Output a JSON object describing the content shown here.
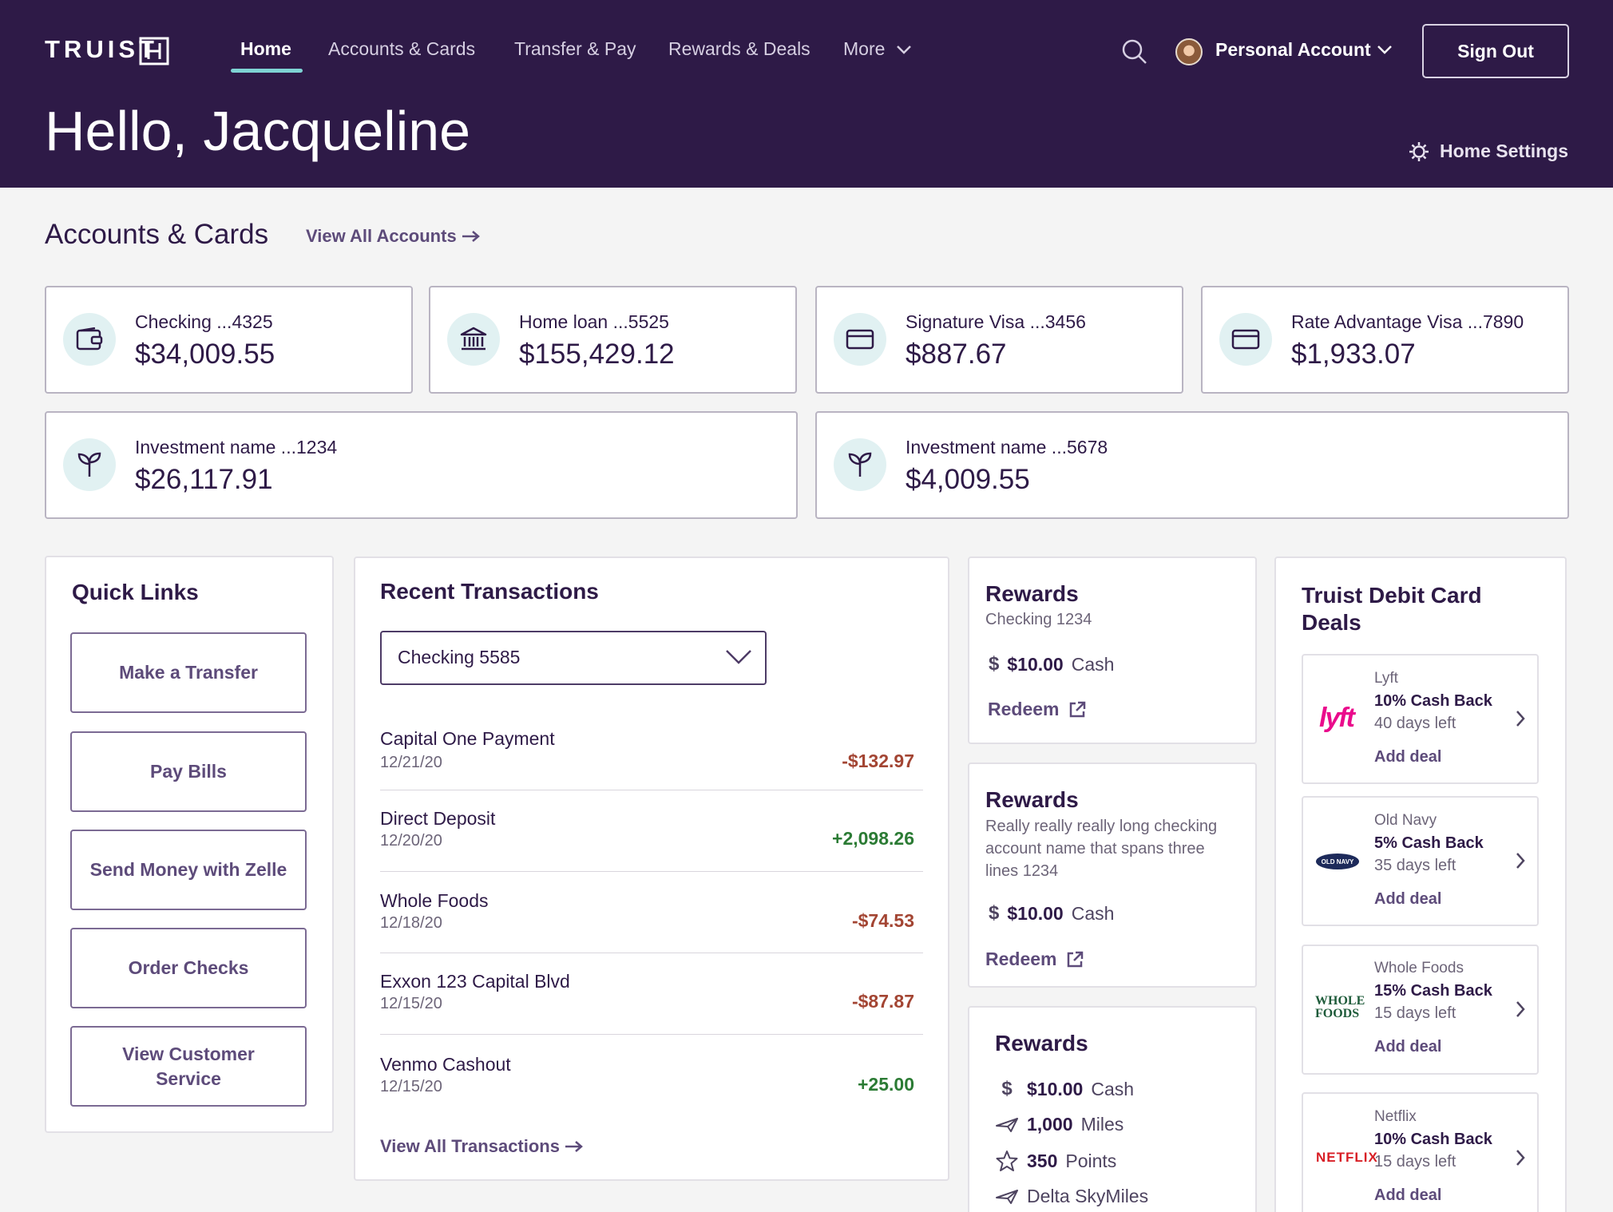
{
  "brand": {
    "name": "TRUIST",
    "primary_color": "#2e1a47",
    "accent_color": "#7ed3d4"
  },
  "nav": {
    "items": [
      {
        "label": "Home",
        "active": true
      },
      {
        "label": "Accounts & Cards"
      },
      {
        "label": "Transfer & Pay"
      },
      {
        "label": "Rewards & Deals"
      },
      {
        "label": "More"
      }
    ],
    "account_label": "Personal Account",
    "sign_out": "Sign Out"
  },
  "header": {
    "greeting": "Hello, Jacqueline",
    "home_settings": "Home Settings"
  },
  "accounts": {
    "title": "Accounts & Cards",
    "view_all": "View All Accounts",
    "cards": [
      {
        "name": "Checking ...4325",
        "balance": "$34,009.55",
        "icon": "wallet-icon"
      },
      {
        "name": "Home loan ...5525",
        "balance": "$155,429.12",
        "icon": "bank-icon"
      },
      {
        "name": "Signature Visa ...3456",
        "balance": "$887.67",
        "icon": "credit-card-icon"
      },
      {
        "name": "Rate Advantage Visa ...7890",
        "balance": "$1,933.07",
        "icon": "credit-card-icon"
      },
      {
        "name": "Investment name ...1234",
        "balance": "$26,117.91",
        "icon": "sprout-icon"
      },
      {
        "name": "Investment name ...5678",
        "balance": "$4,009.55",
        "icon": "sprout-icon"
      }
    ]
  },
  "quick_links": {
    "title": "Quick Links",
    "items": [
      "Make a Transfer",
      "Pay Bills",
      "Send Money with Zelle",
      "Order Checks",
      "View Customer Service"
    ]
  },
  "transactions": {
    "title": "Recent Transactions",
    "selected_account": "Checking 5585",
    "rows": [
      {
        "name": "Capital One Payment",
        "date": "12/21/20",
        "amount": "-$132.97",
        "type": "debit"
      },
      {
        "name": "Direct Deposit",
        "date": "12/20/20",
        "amount": "+2,098.26",
        "type": "credit"
      },
      {
        "name": "Whole Foods",
        "date": "12/18/20",
        "amount": "-$74.53",
        "type": "debit"
      },
      {
        "name": "Exxon 123 Capital Blvd",
        "date": "12/15/20",
        "amount": "-$87.87",
        "type": "debit"
      },
      {
        "name": "Venmo Cashout",
        "date": "12/15/20",
        "amount": "+25.00",
        "type": "credit"
      }
    ],
    "view_all": "View All Transactions"
  },
  "rewards": [
    {
      "title": "Rewards",
      "subtitle": "Checking 1234",
      "amount": "$10.00",
      "unit": "Cash",
      "redeem": "Redeem"
    },
    {
      "title": "Rewards",
      "subtitle": "Really really really long checking account name that spans three lines 1234",
      "amount": "$10.00",
      "unit": "Cash",
      "redeem": "Redeem"
    },
    {
      "title": "Rewards",
      "lines": [
        {
          "icon": "dollar-icon",
          "value": "$10.00",
          "unit": "Cash"
        },
        {
          "icon": "plane-icon",
          "value": "1,000",
          "unit": "Miles"
        },
        {
          "icon": "star-icon",
          "value": "350",
          "unit": "Points"
        },
        {
          "icon": "plane-icon",
          "value": "",
          "unit": "Delta SkyMiles"
        }
      ]
    }
  ],
  "deals": {
    "title": "Truist Debit Card Deals",
    "items": [
      {
        "merchant": "Lyft",
        "logo": "lyft",
        "cash_back": "10% Cash Back",
        "days_left": "40 days left",
        "action": "Add deal"
      },
      {
        "merchant": "Old Navy",
        "logo": "OLD NAVY",
        "cash_back": "5% Cash Back",
        "days_left": "35 days left",
        "action": "Add deal"
      },
      {
        "merchant": "Whole Foods",
        "logo": "WHOLE FOODS",
        "cash_back": "15% Cash Back",
        "days_left": "15 days left",
        "action": "Add deal"
      },
      {
        "merchant": "Netflix",
        "logo": "NETFLIX",
        "cash_back": "10% Cash Back",
        "days_left": "15 days left",
        "action": "Add deal"
      }
    ]
  }
}
